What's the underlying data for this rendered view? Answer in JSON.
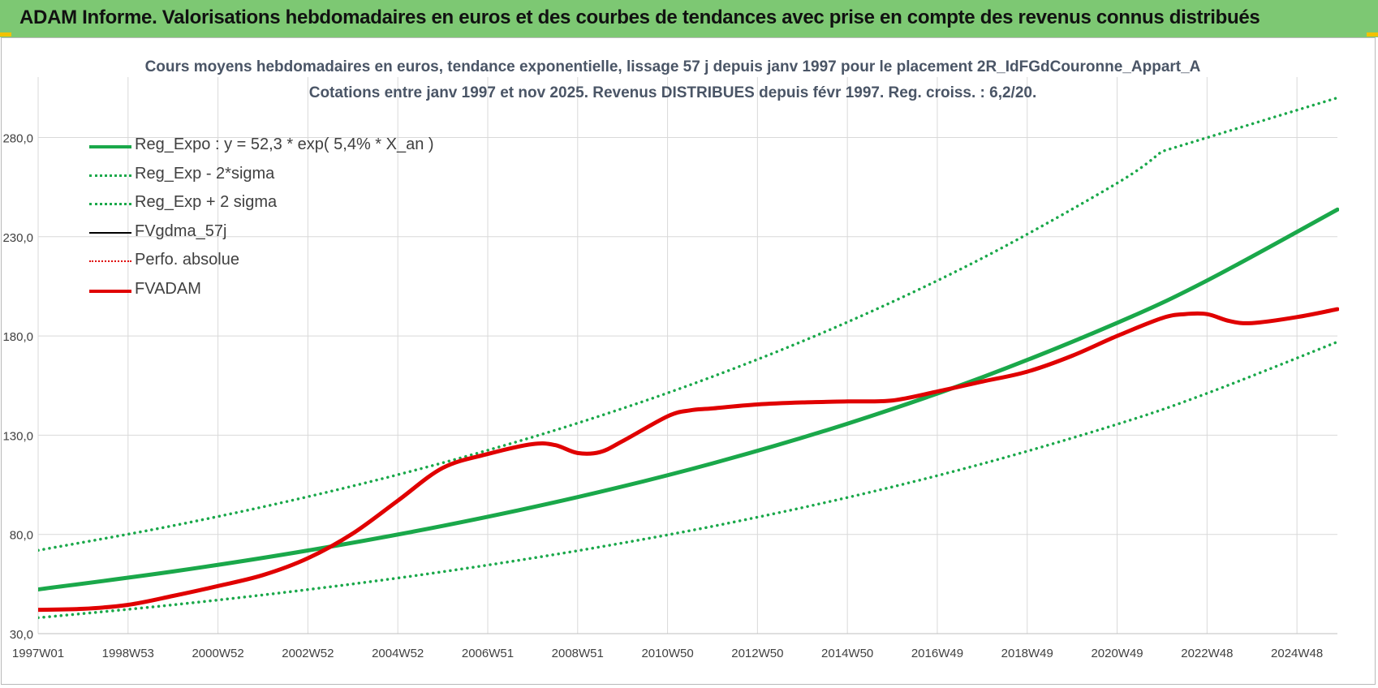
{
  "banner": {
    "title": "ADAM Informe. Valorisations hebdomadaires en euros et des courbes de tendances avec prise en compte des revenus connus distribués",
    "background": "#7dc873"
  },
  "chart_data": {
    "type": "line",
    "title": "Cours moyens hebdomadaires en euros, tendance exponentielle, lissage 57 j depuis janv 1997  pour le placement 2R_IdFGdCouronne_Appart_A",
    "subtitle": "Cotations entre janv 1997 et nov 2025. Revenus DISTRIBUES depuis févr 1997. Reg. croiss. : 6,2/20.",
    "xlabel": "",
    "ylabel": "",
    "x_ticks": [
      "1997W01",
      "1998W53",
      "2000W52",
      "2002W52",
      "2004W52",
      "2006W51",
      "2008W51",
      "2010W50",
      "2012W50",
      "2014W50",
      "2016W49",
      "2018W49",
      "2020W49",
      "2022W48",
      "2024W48"
    ],
    "x_tick_years": [
      1997.0,
      1999.0,
      2001.0,
      2003.0,
      2005.0,
      2007.0,
      2009.0,
      2011.0,
      2013.0,
      2015.0,
      2017.0,
      2019.0,
      2021.0,
      2023.0,
      2025.0
    ],
    "x_range": [
      1997.0,
      2025.9
    ],
    "y_ticks": [
      "30,0",
      "80,0",
      "130,0",
      "180,0",
      "230,0",
      "280,0"
    ],
    "y_range": [
      30,
      280
    ],
    "grid": true,
    "legend_position": "top-left",
    "series": [
      {
        "name": "Reg_Expo : y = 52,3 * exp( 5,4% *  X_an )",
        "color": "#1aa84a",
        "style": "solid",
        "width": 5,
        "x": [
          1997.0,
          2000.0,
          2003.0,
          2006.0,
          2009.0,
          2012.0,
          2015.0,
          2018.0,
          2021.0,
          2023.0,
          2025.9
        ],
        "y": [
          52.3,
          61.3,
          71.9,
          84.3,
          98.8,
          115.8,
          135.8,
          159.2,
          186.6,
          207.9,
          243.7
        ]
      },
      {
        "name": "Reg_Exp - 2*sigma",
        "color": "#1aa84a",
        "style": "dotted",
        "width": 3.5,
        "x": [
          1997.0,
          2000.0,
          2003.0,
          2006.0,
          2009.0,
          2012.0,
          2015.0,
          2018.0,
          2021.0,
          2023.0,
          2025.9
        ],
        "y": [
          38.0,
          44.5,
          52.2,
          61.2,
          71.8,
          84.1,
          98.6,
          115.6,
          135.5,
          151.1,
          177.0
        ]
      },
      {
        "name": "Reg_Exp + 2 sigma",
        "color": "#1aa84a",
        "style": "dotted",
        "width": 3.5,
        "x": [
          1997.0,
          2000.0,
          2003.0,
          2006.0,
          2009.0,
          2012.0,
          2015.0,
          2018.0,
          2021.0,
          2022.0,
          2022.1,
          2025.9
        ],
        "y": [
          72.0,
          84.4,
          99.0,
          116.1,
          136.1,
          159.5,
          187.0,
          219.2,
          257.0,
          273.0,
          300.0,
          300.0
        ]
      },
      {
        "name": "FVgdma_57j",
        "color": "#000000",
        "style": "solid",
        "width": 3,
        "x": [],
        "y": []
      },
      {
        "name": "Perfo. absolue",
        "color": "#e00000",
        "style": "dotted",
        "width": 2.5,
        "x": [],
        "y": []
      },
      {
        "name": "FVADAM",
        "color": "#e00000",
        "style": "solid",
        "width": 5,
        "x": [
          1997.0,
          1998.0,
          1999.0,
          2000.0,
          2001.0,
          2002.0,
          2003.0,
          2004.0,
          2005.0,
          2006.0,
          2007.0,
          2008.0,
          2008.5,
          2009.0,
          2009.5,
          2010.0,
          2011.0,
          2011.5,
          2012.0,
          2013.0,
          2014.0,
          2015.0,
          2016.0,
          2017.0,
          2018.0,
          2019.0,
          2020.0,
          2021.0,
          2022.0,
          2022.5,
          2023.0,
          2023.5,
          2024.0,
          2025.0,
          2025.9
        ],
        "y": [
          42.0,
          42.5,
          44.5,
          49.0,
          54.0,
          59.5,
          68.0,
          80.5,
          97.0,
          113.5,
          120.5,
          125.5,
          125.0,
          121.0,
          121.5,
          127.0,
          139.5,
          142.5,
          143.5,
          145.5,
          146.5,
          147.0,
          147.5,
          152.0,
          157.0,
          162.0,
          170.0,
          180.0,
          189.0,
          191.0,
          191.0,
          187.5,
          186.5,
          189.5,
          193.5
        ]
      }
    ]
  }
}
